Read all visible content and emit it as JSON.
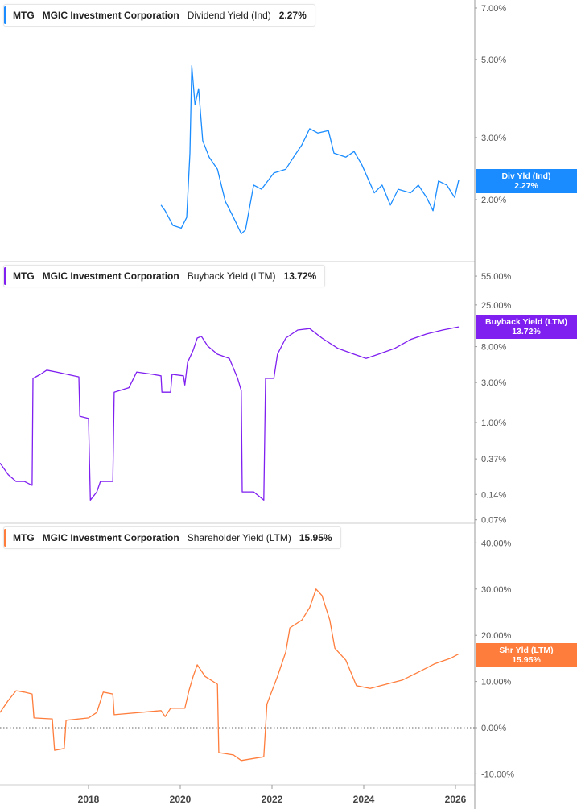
{
  "panels": [
    {
      "ticker": "MTG",
      "company": "MGIC Investment Corporation",
      "metric": "Dividend Yield (Ind)",
      "value": "2.27%",
      "badge_label": "Div Yld (Ind)",
      "badge_value": "2.27%",
      "color": "#1a8cff",
      "scale": "log",
      "ticks": [
        "7.00%",
        "5.00%",
        "3.00%",
        "2.00%"
      ],
      "tick_values": [
        7,
        5,
        3,
        2
      ]
    },
    {
      "ticker": "MTG",
      "company": "MGIC Investment Corporation",
      "metric": "Buyback Yield (LTM)",
      "value": "13.72%",
      "badge_label": "Buyback Yield (LTM)",
      "badge_value": "13.72%",
      "color": "#7f1ff0",
      "scale": "log",
      "ticks": [
        "55.00%",
        "25.00%",
        "8.00%",
        "3.00%",
        "1.00%",
        "0.37%",
        "0.14%",
        "0.07%"
      ],
      "tick_values": [
        55,
        25,
        8,
        3,
        1,
        0.37,
        0.14,
        0.07
      ]
    },
    {
      "ticker": "MTG",
      "company": "MGIC Investment Corporation",
      "metric": "Shareholder Yield (LTM)",
      "value": "15.95%",
      "badge_label": "Shr Yld (LTM)",
      "badge_value": "15.95%",
      "color": "#ff7d3c",
      "scale": "linear",
      "ticks": [
        "40.00%",
        "30.00%",
        "20.00%",
        "10.00%",
        "0.00%",
        "-10.00%"
      ],
      "tick_values": [
        40,
        30,
        20,
        10,
        0,
        -10
      ]
    }
  ],
  "x_ticks": [
    "2018",
    "2020",
    "2022",
    "2024",
    "2026"
  ],
  "chart_data": {
    "type": "line",
    "x_ticks": [
      2018,
      2020,
      2022,
      2024,
      2026
    ],
    "series": [
      {
        "name": "Dividend Yield (Ind)",
        "unit": "%",
        "points": [
          [
            2019.58,
            1.93
          ],
          [
            2019.67,
            1.86
          ],
          [
            2019.84,
            1.69
          ],
          [
            2020.02,
            1.66
          ],
          [
            2020.14,
            1.78
          ],
          [
            2020.21,
            2.71
          ],
          [
            2020.25,
            4.8
          ],
          [
            2020.32,
            3.72
          ],
          [
            2020.4,
            4.13
          ],
          [
            2020.49,
            2.94
          ],
          [
            2020.63,
            2.64
          ],
          [
            2020.81,
            2.44
          ],
          [
            2020.98,
            1.98
          ],
          [
            2021.16,
            1.78
          ],
          [
            2021.33,
            1.6
          ],
          [
            2021.42,
            1.64
          ],
          [
            2021.6,
            2.2
          ],
          [
            2021.77,
            2.14
          ],
          [
            2022.04,
            2.38
          ],
          [
            2022.3,
            2.44
          ],
          [
            2022.47,
            2.64
          ],
          [
            2022.65,
            2.86
          ],
          [
            2022.82,
            3.18
          ],
          [
            2023.0,
            3.09
          ],
          [
            2023.23,
            3.14
          ],
          [
            2023.35,
            2.71
          ],
          [
            2023.61,
            2.64
          ],
          [
            2023.79,
            2.74
          ],
          [
            2023.96,
            2.51
          ],
          [
            2024.23,
            2.09
          ],
          [
            2024.4,
            2.2
          ],
          [
            2024.58,
            1.93
          ],
          [
            2024.75,
            2.14
          ],
          [
            2025.02,
            2.09
          ],
          [
            2025.19,
            2.2
          ],
          [
            2025.37,
            2.03
          ],
          [
            2025.51,
            1.86
          ],
          [
            2025.63,
            2.26
          ],
          [
            2025.81,
            2.2
          ],
          [
            2025.98,
            2.03
          ],
          [
            2026.07,
            2.27
          ]
        ]
      },
      {
        "name": "Buyback Yield (LTM)",
        "unit": "%",
        "points": [
          [
            2016.07,
            0.33
          ],
          [
            2016.25,
            0.24
          ],
          [
            2016.42,
            0.2
          ],
          [
            2016.6,
            0.2
          ],
          [
            2016.77,
            0.18
          ],
          [
            2016.79,
            3.36
          ],
          [
            2016.95,
            3.75
          ],
          [
            2017.09,
            4.2
          ],
          [
            2017.3,
            4.0
          ],
          [
            2017.79,
            3.5
          ],
          [
            2017.81,
            1.19
          ],
          [
            2018.0,
            1.12
          ],
          [
            2018.04,
            0.12
          ],
          [
            2018.18,
            0.15
          ],
          [
            2018.26,
            0.2
          ],
          [
            2018.53,
            0.2
          ],
          [
            2018.56,
            2.3
          ],
          [
            2018.88,
            2.6
          ],
          [
            2019.05,
            4.0
          ],
          [
            2019.4,
            3.75
          ],
          [
            2019.58,
            3.6
          ],
          [
            2019.6,
            2.3
          ],
          [
            2019.79,
            2.3
          ],
          [
            2019.82,
            3.75
          ],
          [
            2020.07,
            3.6
          ],
          [
            2020.1,
            2.8
          ],
          [
            2020.16,
            5.2
          ],
          [
            2020.28,
            7.25
          ],
          [
            2020.37,
            10.1
          ],
          [
            2020.46,
            10.6
          ],
          [
            2020.6,
            8.1
          ],
          [
            2020.81,
            6.5
          ],
          [
            2021.07,
            5.8
          ],
          [
            2021.25,
            3.36
          ],
          [
            2021.33,
            2.4
          ],
          [
            2021.35,
            0.15
          ],
          [
            2021.6,
            0.15
          ],
          [
            2021.82,
            0.12
          ],
          [
            2021.86,
            3.36
          ],
          [
            2022.04,
            3.36
          ],
          [
            2022.12,
            6.5
          ],
          [
            2022.3,
            10.1
          ],
          [
            2022.56,
            12.6
          ],
          [
            2022.82,
            13.1
          ],
          [
            2023.09,
            10.1
          ],
          [
            2023.44,
            7.6
          ],
          [
            2023.79,
            6.5
          ],
          [
            2024.05,
            5.8
          ],
          [
            2024.32,
            6.5
          ],
          [
            2024.67,
            7.6
          ],
          [
            2025.02,
            9.7
          ],
          [
            2025.37,
            11.3
          ],
          [
            2025.72,
            12.6
          ],
          [
            2026.07,
            13.72
          ]
        ]
      },
      {
        "name": "Shareholder Yield (LTM)",
        "unit": "%",
        "points": [
          [
            2016.07,
            3.3
          ],
          [
            2016.25,
            5.9
          ],
          [
            2016.42,
            8.0
          ],
          [
            2016.6,
            7.7
          ],
          [
            2016.77,
            7.3
          ],
          [
            2016.81,
            2.1
          ],
          [
            2017.21,
            1.9
          ],
          [
            2017.26,
            -4.9
          ],
          [
            2017.47,
            -4.5
          ],
          [
            2017.51,
            1.6
          ],
          [
            2018.0,
            2.1
          ],
          [
            2018.18,
            3.3
          ],
          [
            2018.32,
            7.7
          ],
          [
            2018.53,
            7.3
          ],
          [
            2018.56,
            2.8
          ],
          [
            2019.58,
            3.7
          ],
          [
            2019.67,
            2.4
          ],
          [
            2019.79,
            4.2
          ],
          [
            2020.1,
            4.2
          ],
          [
            2020.19,
            8.0
          ],
          [
            2020.28,
            11.1
          ],
          [
            2020.37,
            13.6
          ],
          [
            2020.54,
            11.1
          ],
          [
            2020.81,
            9.4
          ],
          [
            2020.84,
            -5.4
          ],
          [
            2021.16,
            -5.9
          ],
          [
            2021.33,
            -7.1
          ],
          [
            2021.82,
            -6.3
          ],
          [
            2021.89,
            5.1
          ],
          [
            2022.12,
            11.1
          ],
          [
            2022.3,
            16.4
          ],
          [
            2022.39,
            21.6
          ],
          [
            2022.65,
            23.3
          ],
          [
            2022.82,
            26.0
          ],
          [
            2022.96,
            30.0
          ],
          [
            2023.09,
            28.6
          ],
          [
            2023.26,
            23.3
          ],
          [
            2023.37,
            17.2
          ],
          [
            2023.61,
            14.6
          ],
          [
            2023.84,
            9.1
          ],
          [
            2024.14,
            8.5
          ],
          [
            2024.49,
            9.4
          ],
          [
            2024.84,
            10.3
          ],
          [
            2025.19,
            12.0
          ],
          [
            2025.54,
            13.8
          ],
          [
            2025.89,
            15.0
          ],
          [
            2026.07,
            15.95
          ]
        ]
      }
    ]
  }
}
